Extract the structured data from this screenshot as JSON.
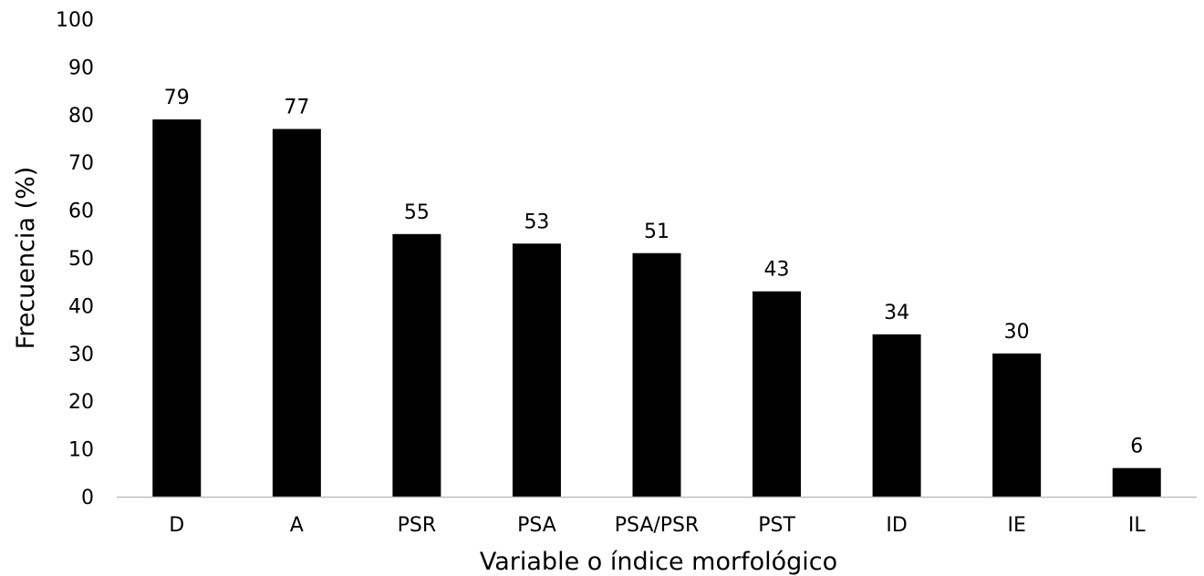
{
  "chart_data": {
    "type": "bar",
    "title": "",
    "xlabel": "Variable o índice morfológico",
    "ylabel": "Frecuencia (%)",
    "ylim": [
      0,
      100
    ],
    "yticks": [
      0,
      10,
      20,
      30,
      40,
      50,
      60,
      70,
      80,
      90,
      100
    ],
    "categories": [
      "D",
      "A",
      "PSR",
      "PSA",
      "PSA/PSR",
      "PST",
      "ID",
      "IE",
      "IL"
    ],
    "values": [
      79,
      77,
      55,
      53,
      51,
      43,
      34,
      30,
      6
    ],
    "data_labels": [
      "79",
      "77",
      "55",
      "53",
      "51",
      "43",
      "34",
      "30",
      "6"
    ],
    "bar_color": "#000000",
    "grid": false,
    "legend": "none"
  }
}
